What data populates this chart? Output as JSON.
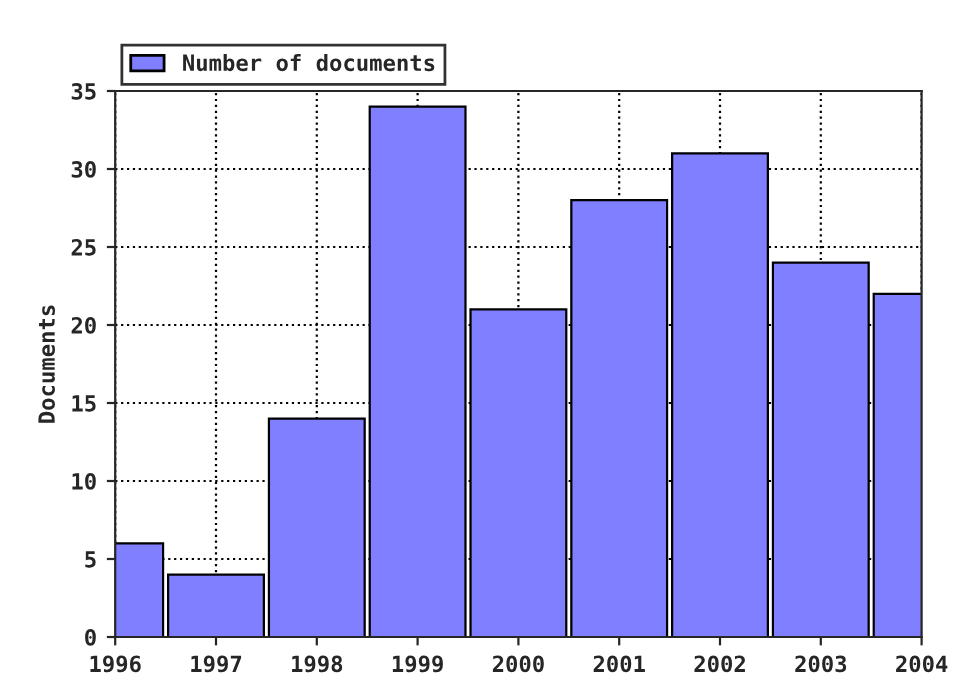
{
  "chart_data": {
    "type": "bar",
    "ylabel": "Documents",
    "x": [
      1996,
      1997,
      1998,
      1999,
      2000,
      2001,
      2002,
      2003,
      2004
    ],
    "series": [
      {
        "name": "Number of documents",
        "color": "#7f7fff",
        "values": [
          6,
          4,
          14,
          34,
          21,
          28,
          31,
          24,
          22
        ]
      }
    ],
    "xlim": [
      1996,
      2004
    ],
    "xticks": [
      1996,
      1997,
      1998,
      1999,
      2000,
      2001,
      2002,
      2003,
      2004
    ],
    "ylim": [
      0,
      35
    ],
    "yticks": [
      0,
      5,
      10,
      15,
      20,
      25,
      30,
      35
    ],
    "grid": true,
    "legend": "top left"
  }
}
